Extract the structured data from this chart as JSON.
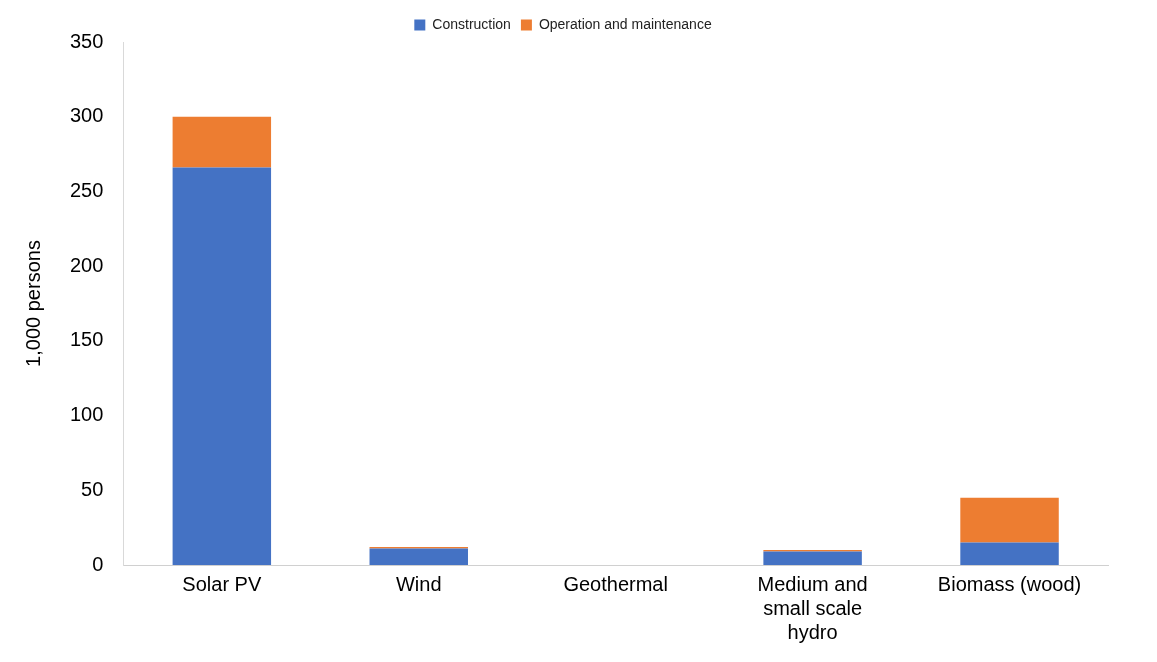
{
  "chart_data": {
    "type": "bar",
    "stacked": true,
    "ylabel": "1,000 persons",
    "categories": [
      "Solar PV",
      "Wind",
      "Geothermal",
      "Medium and small scale hydro",
      "Biomass (wood)"
    ],
    "series": [
      {
        "name": "Construction",
        "color": "#4472c4",
        "values": [
          266,
          11,
          0,
          9,
          15
        ]
      },
      {
        "name": "Operation and maintenance",
        "color": "#ed7d31",
        "values": [
          34,
          1,
          0,
          1,
          30
        ]
      }
    ],
    "ylim": [
      0,
      350
    ],
    "yticks": [
      0,
      50,
      100,
      150,
      200,
      250,
      300,
      350
    ],
    "grid": false,
    "legend": "top"
  }
}
